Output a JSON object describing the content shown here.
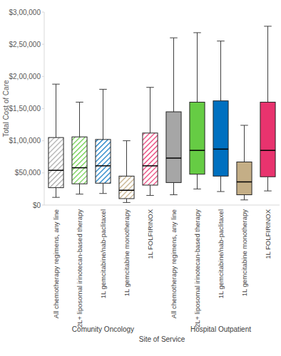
{
  "chart_data": {
    "type": "box",
    "x_label": "Site of Service",
    "y_label": "Total Cost of Care",
    "categories": [
      "All chemotherapy regimens, any line",
      "2L+ liposomal irinotecan-based therapy",
      "1L gemcitabine/nab-paclitaxel",
      "1L gemcitabine monotherapy",
      "1L FOLFIRINOX"
    ],
    "series": [
      {
        "name": "Comunity Oncology",
        "colors": [
          "#a6a6a6",
          "#66cc44",
          "#0070c0",
          "#c4ae86",
          "#e8336e"
        ],
        "min": [
          12000,
          17000,
          18000,
          4000,
          15000
        ],
        "q1": [
          27000,
          33000,
          34000,
          10000,
          31000
        ],
        "median": [
          54000,
          58000,
          61000,
          23000,
          61000
        ],
        "q3": [
          105000,
          106000,
          102000,
          45000,
          112000
        ],
        "max": [
          188000,
          160000,
          180000,
          100000,
          183000
        ]
      },
      {
        "name": "Hospital Outpatient",
        "colors": [
          "#a6a6a6",
          "#66cc44",
          "#0070c0",
          "#c4ae86",
          "#e8336e"
        ],
        "min": [
          16000,
          25000,
          21000,
          8000,
          22000
        ],
        "q1": [
          35000,
          48000,
          45000,
          16000,
          44000
        ],
        "median": [
          73000,
          85000,
          87000,
          36000,
          85000
        ],
        "q3": [
          145000,
          160000,
          162000,
          67000,
          160000
        ],
        "max": [
          260000,
          268000,
          255000,
          124000,
          278000
        ]
      }
    ],
    "ylim": [
      0,
      300000
    ],
    "yticks": [
      {
        "value": 0,
        "label": "$0"
      },
      {
        "value": 50000,
        "label": "$50,000"
      },
      {
        "value": 100000,
        "label": "$1,00,000"
      },
      {
        "value": 150000,
        "label": "$1,50,000"
      },
      {
        "value": 200000,
        "label": "$2,00,000"
      },
      {
        "value": 250000,
        "label": "$2,50,000"
      },
      {
        "value": 300000,
        "label": "$3,00,000"
      }
    ],
    "grid": false
  }
}
